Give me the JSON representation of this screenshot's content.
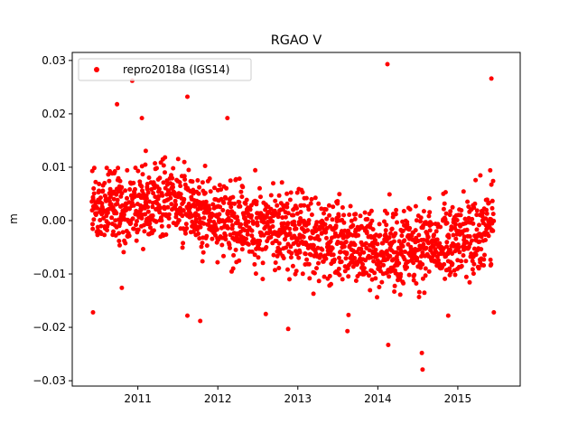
{
  "chart_data": {
    "type": "scatter",
    "title": "RGAO V",
    "xlabel": "",
    "ylabel": "m",
    "xlim": [
      2010.18,
      2015.78
    ],
    "ylim": [
      -0.031,
      0.0315
    ],
    "x_ticks": [
      2011,
      2012,
      2013,
      2014,
      2015
    ],
    "y_ticks": [
      -0.03,
      -0.02,
      -0.01,
      0.0,
      0.01,
      0.02,
      0.03
    ],
    "y_tick_labels": [
      "−0.03",
      "−0.02",
      "−0.01",
      "0.00",
      "0.01",
      "0.02",
      "0.03"
    ],
    "grid": false,
    "legend_position": "top-left",
    "marker_color": "#ff0000",
    "series": [
      {
        "name": "repro2018a (IGS14)",
        "x_range": [
          2010.42,
          2015.45
        ],
        "trend": [
          [
            2010.42,
            0.002
          ],
          [
            2011.0,
            0.003
          ],
          [
            2011.5,
            0.004
          ],
          [
            2012.0,
            0.0
          ],
          [
            2012.5,
            -0.001
          ],
          [
            2013.0,
            -0.002
          ],
          [
            2013.5,
            -0.004
          ],
          [
            2014.0,
            -0.006
          ],
          [
            2014.5,
            -0.005
          ],
          [
            2015.0,
            -0.004
          ],
          [
            2015.45,
            0.0
          ]
        ],
        "outliers": [
          [
            2010.44,
            -0.0172
          ],
          [
            2010.74,
            0.0218
          ],
          [
            2010.8,
            -0.0126
          ],
          [
            2010.93,
            0.0262
          ],
          [
            2011.05,
            0.0192
          ],
          [
            2011.62,
            0.0232
          ],
          [
            2011.62,
            -0.0178
          ],
          [
            2011.78,
            -0.0188
          ],
          [
            2012.12,
            0.0192
          ],
          [
            2012.6,
            -0.0175
          ],
          [
            2012.88,
            -0.0203
          ],
          [
            2013.62,
            -0.0207
          ],
          [
            2014.12,
            0.0293
          ],
          [
            2014.13,
            -0.0233
          ],
          [
            2014.55,
            -0.0248
          ],
          [
            2014.56,
            -0.0279
          ],
          [
            2014.88,
            -0.0178
          ],
          [
            2015.42,
            0.0266
          ],
          [
            2015.45,
            -0.0172
          ]
        ]
      }
    ]
  }
}
